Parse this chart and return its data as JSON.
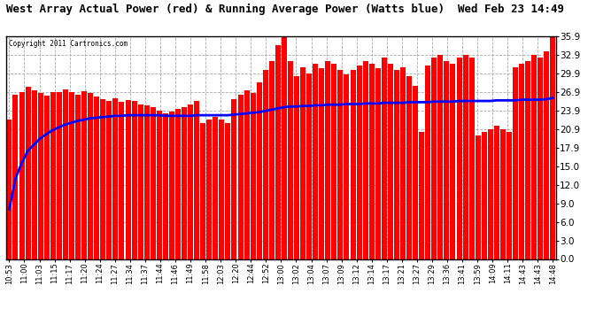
{
  "title": "West Array Actual Power (red) & Running Average Power (Watts blue)  Wed Feb 23 14:49",
  "copyright": "Copyright 2011 Cartronics.com",
  "yticks": [
    0.0,
    3.0,
    6.0,
    9.0,
    12.0,
    15.0,
    17.9,
    20.9,
    23.9,
    26.9,
    29.9,
    32.9,
    35.9
  ],
  "ylim": [
    0.0,
    35.9
  ],
  "bar_color": "#ff0000",
  "line_color": "blue",
  "background_color": "white",
  "grid_color": "#aaaaaa",
  "x_labels": [
    "10:53",
    "11:00",
    "11:03",
    "11:15",
    "11:17",
    "11:20",
    "11:24",
    "11:27",
    "11:34",
    "11:37",
    "11:44",
    "11:46",
    "11:49",
    "11:58",
    "12:03",
    "12:20",
    "12:44",
    "12:52",
    "13:00",
    "13:02",
    "13:04",
    "13:07",
    "13:09",
    "13:12",
    "13:14",
    "13:17",
    "13:21",
    "13:27",
    "13:29",
    "13:36",
    "13:41",
    "13:59",
    "14:09",
    "14:11",
    "14:43",
    "14:43",
    "14:48"
  ],
  "bar_values": [
    22.5,
    26.5,
    26.9,
    27.8,
    27.2,
    26.8,
    26.3,
    27.0,
    26.9,
    27.3,
    27.0,
    26.5,
    27.1,
    26.8,
    26.2,
    25.8,
    25.5,
    26.0,
    25.3,
    25.7,
    25.5,
    25.0,
    24.8,
    24.5,
    24.0,
    23.5,
    23.8,
    24.2,
    24.5,
    25.0,
    25.5,
    22.0,
    22.5,
    23.0,
    22.5,
    22.0,
    25.8,
    26.5,
    27.2,
    26.8,
    28.5,
    30.5,
    32.0,
    34.5,
    35.8,
    32.0,
    29.5,
    31.0,
    30.0,
    31.5,
    30.8,
    32.0,
    31.5,
    30.5,
    29.8,
    30.5,
    31.2,
    32.0,
    31.5,
    30.8,
    32.5,
    31.5,
    30.5,
    31.0,
    29.5,
    28.0,
    20.5,
    31.2,
    32.5,
    33.0,
    32.0,
    31.5,
    32.5,
    33.0,
    32.5,
    20.0,
    20.5,
    21.0,
    21.5,
    21.0,
    20.5,
    31.0,
    31.5,
    32.0,
    33.0,
    32.5,
    33.5,
    35.8
  ],
  "avg_values": [
    8.0,
    13.0,
    15.5,
    17.5,
    18.5,
    19.5,
    20.2,
    20.8,
    21.3,
    21.7,
    22.0,
    22.3,
    22.5,
    22.7,
    22.8,
    22.9,
    23.0,
    23.1,
    23.1,
    23.2,
    23.2,
    23.2,
    23.2,
    23.2,
    23.2,
    23.1,
    23.1,
    23.1,
    23.1,
    23.1,
    23.2,
    23.2,
    23.2,
    23.2,
    23.2,
    23.2,
    23.3,
    23.4,
    23.5,
    23.6,
    23.7,
    23.9,
    24.1,
    24.3,
    24.5,
    24.6,
    24.6,
    24.7,
    24.7,
    24.8,
    24.8,
    24.9,
    24.9,
    24.9,
    25.0,
    25.0,
    25.0,
    25.1,
    25.1,
    25.1,
    25.2,
    25.2,
    25.2,
    25.2,
    25.3,
    25.3,
    25.3,
    25.3,
    25.4,
    25.4,
    25.4,
    25.4,
    25.5,
    25.5,
    25.5,
    25.5,
    25.5,
    25.5,
    25.6,
    25.6,
    25.6,
    25.6,
    25.7,
    25.7,
    25.7,
    25.7,
    25.8,
    26.0
  ]
}
